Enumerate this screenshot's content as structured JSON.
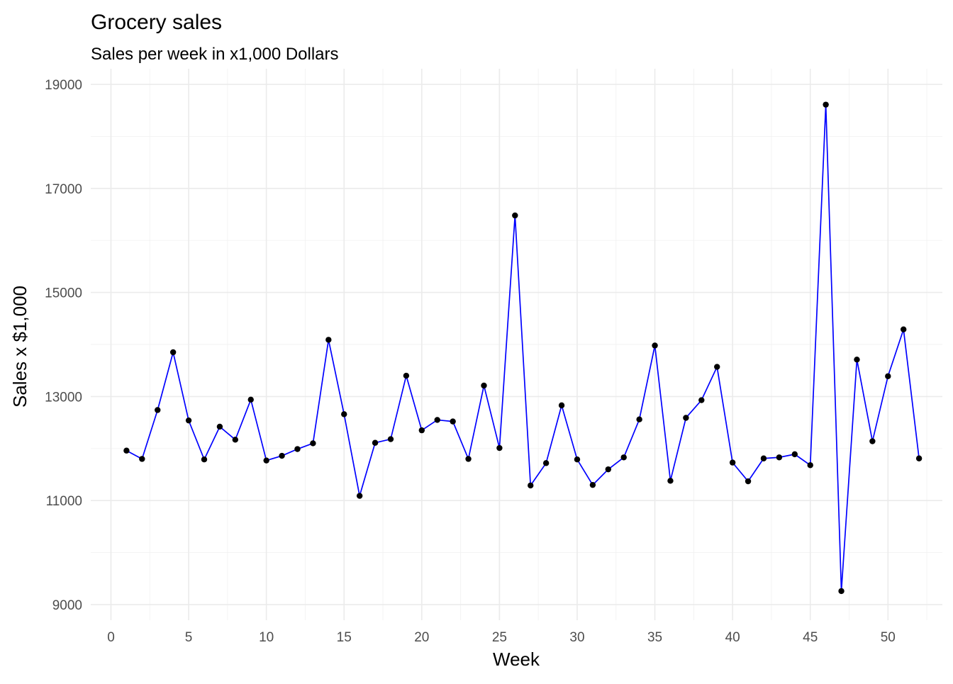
{
  "chart_data": {
    "type": "line",
    "title": "Grocery sales",
    "subtitle": "Sales per week in x1,000 Dollars",
    "xlabel": "Week",
    "ylabel": "Sales x $1,000",
    "xlim": [
      -1.3,
      53.5
    ],
    "ylim": [
      8700,
      19300
    ],
    "x_ticks": [
      0,
      5,
      10,
      15,
      20,
      25,
      30,
      35,
      40,
      45,
      50
    ],
    "y_ticks": [
      9000,
      11000,
      13000,
      15000,
      17000,
      19000
    ],
    "grid": true,
    "line_color": "#0000ff",
    "point_color": "#000000",
    "series": [
      {
        "x": [
          1,
          2,
          3,
          4,
          5,
          6,
          7,
          8,
          9,
          10,
          11,
          12,
          13,
          14,
          15,
          16,
          17,
          18,
          19,
          20,
          21,
          22,
          23,
          24,
          25,
          26,
          27,
          28,
          29,
          30,
          31,
          32,
          33,
          34,
          35,
          36,
          37,
          38,
          39,
          40,
          41,
          42,
          43,
          44,
          45,
          46,
          47,
          48,
          49,
          50,
          51,
          52
        ],
        "y": [
          11960,
          11800,
          12740,
          13850,
          12540,
          11790,
          12420,
          12170,
          12940,
          11770,
          11860,
          11990,
          12100,
          14090,
          12660,
          11090,
          12110,
          12180,
          13400,
          12350,
          12550,
          12520,
          11800,
          13210,
          12010,
          16480,
          11290,
          11720,
          12830,
          11790,
          11300,
          11600,
          11830,
          12560,
          13980,
          11380,
          12590,
          12930,
          13570,
          11730,
          11370,
          11810,
          11830,
          11890,
          11680,
          18610,
          9260,
          13710,
          12140,
          13390,
          14290,
          11810
        ]
      }
    ]
  }
}
